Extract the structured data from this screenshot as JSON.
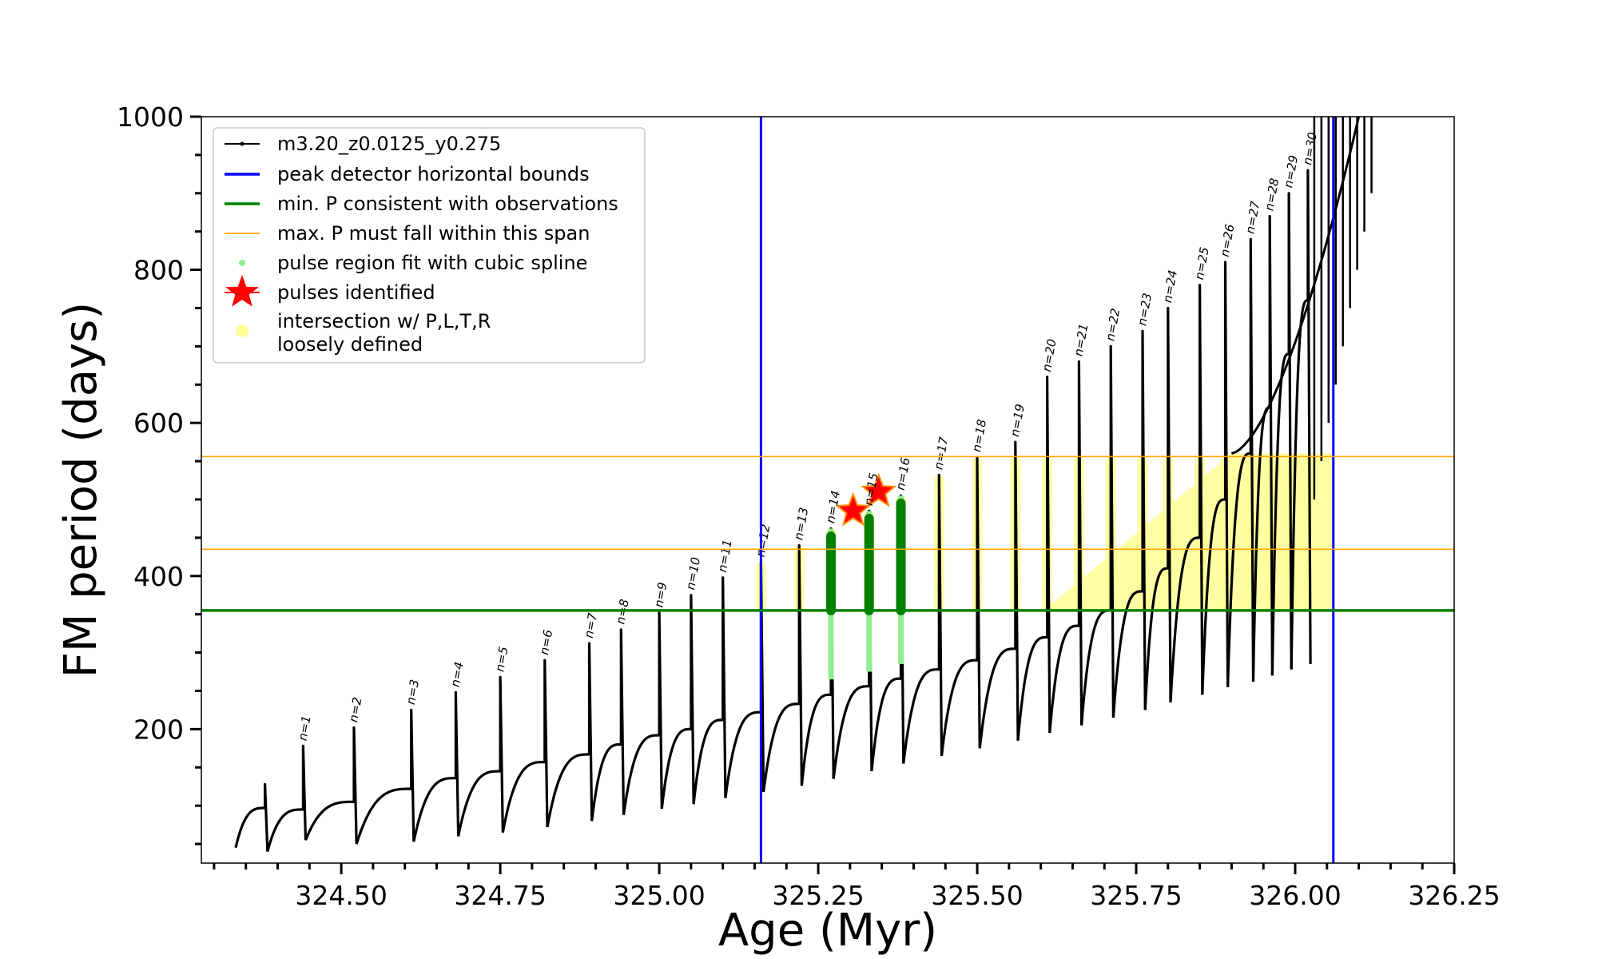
{
  "chart_data": {
    "type": "line",
    "xlabel": "Age (Myr)",
    "ylabel": "FM period (days)",
    "xlim": [
      324.28,
      326.25
    ],
    "ylim": [
      25,
      1000
    ],
    "xticks": [
      324.5,
      324.75,
      325.0,
      325.25,
      325.5,
      325.75,
      326.0,
      326.25
    ],
    "xtick_labels": [
      "324.50",
      "324.75",
      "325.00",
      "325.25",
      "325.50",
      "325.75",
      "326.00",
      "326.25"
    ],
    "yticks": [
      200,
      400,
      600,
      800,
      1000
    ],
    "ytick_labels": [
      "200",
      "400",
      "600",
      "800",
      "1000"
    ],
    "legend": {
      "position": "top-left",
      "entries": [
        {
          "label": "m3.20_z0.0125_y0.275",
          "color": "#000000",
          "marker": "line-dot"
        },
        {
          "label": "peak detector horizontal bounds",
          "color": "#0000ff",
          "marker": "line"
        },
        {
          "label": "min. P consistent with observations",
          "color": "#008000",
          "marker": "line"
        },
        {
          "label": "max. P must fall within this span",
          "color": "#ffa500",
          "marker": "thin-line"
        },
        {
          "label": "pulse region fit with cubic spline",
          "color": "#90ee90",
          "marker": "dot"
        },
        {
          "label": "pulses identified",
          "color": "#ff0000",
          "marker": "star"
        },
        {
          "label": "intersection w/ P,L,T,R",
          "label2": "loosely defined",
          "color": "#ffff99",
          "marker": "circle"
        }
      ]
    },
    "vertical_bounds": {
      "color": "#0000ff",
      "x": [
        325.16,
        326.06
      ]
    },
    "min_period_line": {
      "color": "#008000",
      "y": 355
    },
    "max_period_span": {
      "color": "#ffa500",
      "y": [
        435,
        556
      ]
    },
    "pulses": {
      "start_age": 324.33,
      "labels": [
        "n=1",
        "n=2",
        "n=3",
        "n=4",
        "n=5",
        "n=6",
        "n=7",
        "n=8",
        "n=9",
        "n=10",
        "n=11",
        "n=12",
        "n=13",
        "n=14",
        "n=15",
        "n=16",
        "n=17",
        "n=18",
        "n=19",
        "n=20",
        "n=21",
        "n=22",
        "n=23",
        "n=24",
        "n=25",
        "n=26",
        "n=27",
        "n=28",
        "n=29",
        "n=30"
      ],
      "ages": [
        324.44,
        324.52,
        324.61,
        324.68,
        324.75,
        324.82,
        324.89,
        324.94,
        325.0,
        325.05,
        325.1,
        325.16,
        325.22,
        325.27,
        325.33,
        325.38,
        325.44,
        325.5,
        325.56,
        325.61,
        325.66,
        325.71,
        325.76,
        325.8,
        325.85,
        325.89,
        325.93,
        325.96,
        325.99,
        326.02
      ],
      "peak_periods": [
        178,
        202,
        225,
        248,
        268,
        290,
        312,
        330,
        352,
        375,
        398,
        418,
        440,
        462,
        485,
        505,
        532,
        555,
        575,
        660,
        680,
        700,
        720,
        750,
        780,
        810,
        840,
        870,
        900,
        930
      ],
      "trough_periods": [
        55,
        50,
        53,
        60,
        65,
        72,
        80,
        88,
        96,
        102,
        110,
        118,
        126,
        135,
        145,
        155,
        165,
        175,
        185,
        195,
        205,
        215,
        225,
        235,
        245,
        255,
        262,
        270,
        278,
        285
      ],
      "pre_pulse_periods": [
        95,
        105,
        122,
        136,
        145,
        157,
        167,
        180,
        192,
        200,
        212,
        222,
        233,
        245,
        256,
        266,
        278,
        290,
        305,
        320,
        335,
        355,
        380,
        410,
        450,
        500,
        560,
        620,
        690,
        760
      ]
    },
    "extra_pulses": {
      "ages": [
        324.38
      ],
      "peak_periods": [
        128
      ],
      "trough_periods": [
        40
      ],
      "pre_pulse_periods": [
        97
      ]
    },
    "spline_fit_pulses": {
      "color": "#90ee90",
      "labels": [
        "n=14",
        "n=15",
        "n=16"
      ]
    },
    "identified_pulses": {
      "color": "#ff0000",
      "labels": [
        "n=14",
        "n=15"
      ],
      "ages": [
        325.305,
        325.345
      ],
      "periods": [
        485,
        510
      ]
    }
  }
}
